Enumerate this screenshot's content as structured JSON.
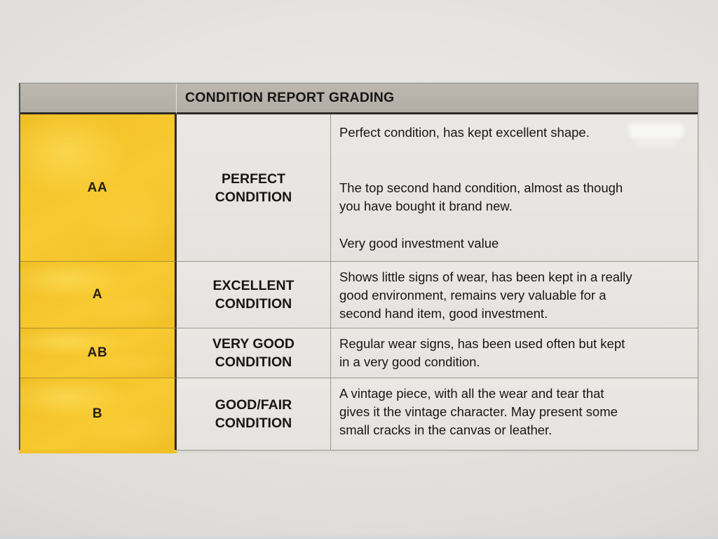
{
  "table": {
    "title": "CONDITION REPORT GRADING",
    "rows": [
      {
        "grade": "AA",
        "condition": "PERFECT\nCONDITION",
        "paragraphs": [
          "Perfect condition, has kept excellent shape.",
          "The top second hand condition, almost as though\nyou have bought it brand new.",
          "Very good investment value"
        ]
      },
      {
        "grade": "A",
        "condition": "EXCELLENT\nCONDITION",
        "paragraphs": [
          "Shows little signs of wear, has been kept in a really\ngood environment, remains very valuable for a\nsecond hand item, good investment."
        ]
      },
      {
        "grade": "AB",
        "condition": "VERY GOOD\nCONDITION",
        "paragraphs": [
          "Regular wear signs, has been used often but kept\nin a very good condition."
        ]
      },
      {
        "grade": "B",
        "condition": "GOOD/FAIR\nCONDITION",
        "paragraphs": [
          "A vintage piece, with all the wear and tear that\ngives it the vintage character. May present some\nsmall cracks in the canvas or leather."
        ]
      }
    ]
  },
  "colors": {
    "grade_yellow": "#f4c52a",
    "header_gray": "#b7b3ab",
    "cell_gray": "#e8e6e2",
    "paper": "#e3e1de",
    "dark_rule": "#2e2c28",
    "grid_rule": "#9c9890",
    "text": "#181715"
  }
}
